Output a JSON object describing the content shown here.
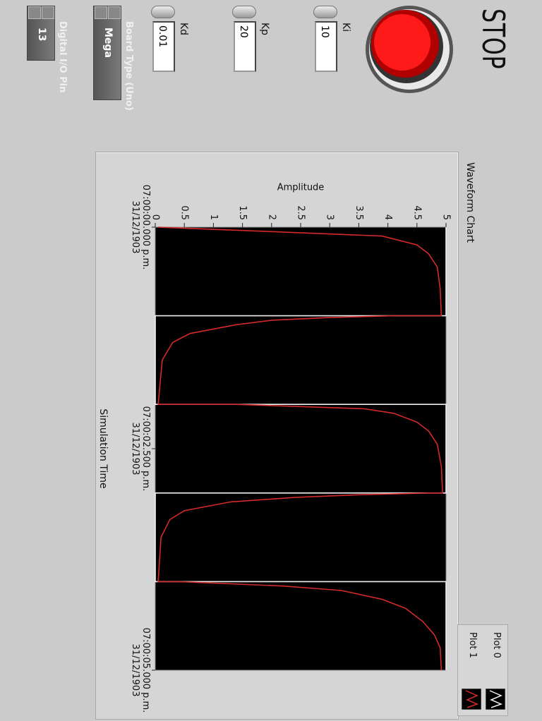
{
  "stop_button": {
    "label": "STOP"
  },
  "controls": [
    {
      "label": "Ki",
      "value": "10"
    },
    {
      "label": "Kp",
      "value": "20"
    },
    {
      "label": "Kd",
      "value": "0.01"
    }
  ],
  "board_type": {
    "label": "Board Type (Uno)",
    "value": "Mega"
  },
  "digital_pin": {
    "label": "Digital I/O Pin",
    "value": "13"
  },
  "chart_data": {
    "type": "line",
    "title": "Waveform Chart",
    "x_label": "Simulation Time",
    "y_label": "Amplitude",
    "xlim": [
      0,
      5
    ],
    "xticks": [
      {
        "value": 0,
        "label": "07:00:00.000 p.m.\n31/12/1903"
      },
      {
        "value": 2.5,
        "label": "07:00:02.500 p.m.\n31/12/1903"
      },
      {
        "value": 5,
        "label": "07:00:05.000 p.m.\n31/12/1903"
      }
    ],
    "ylim": [
      0,
      5
    ],
    "yticks": [
      0,
      0.5,
      1,
      1.5,
      2,
      2.5,
      3,
      3.5,
      4,
      4.5,
      5
    ],
    "plot_background": "#000000",
    "legend": "top-right",
    "series": [
      {
        "name": "Plot 0",
        "color": "#f0f0f0",
        "x": [
          0,
          1,
          1,
          2,
          2,
          3,
          3,
          4,
          4,
          5
        ],
        "values": [
          5,
          5,
          0,
          0,
          5,
          5,
          0,
          0,
          5,
          5
        ]
      },
      {
        "name": "Plot 1",
        "color": "#d42a2a",
        "x": [
          0,
          0.05,
          0.1,
          0.2,
          0.3,
          0.45,
          0.7,
          1.0,
          1.0,
          1.02,
          1.05,
          1.1,
          1.2,
          1.3,
          1.5,
          2.0,
          2.0,
          2.05,
          2.1,
          2.2,
          2.3,
          2.45,
          2.7,
          3.0,
          3.0,
          3.02,
          3.05,
          3.1,
          3.2,
          3.3,
          3.5,
          4.0,
          4.0,
          4.05,
          4.1,
          4.2,
          4.3,
          4.45,
          4.6,
          4.75,
          5.0
        ],
        "values": [
          0.05,
          2.0,
          3.9,
          4.5,
          4.7,
          4.85,
          4.9,
          4.92,
          4.1,
          3.0,
          2.0,
          1.4,
          0.6,
          0.3,
          0.12,
          0.05,
          1.4,
          3.6,
          4.1,
          4.5,
          4.7,
          4.85,
          4.92,
          4.94,
          4.7,
          3.5,
          2.4,
          1.3,
          0.5,
          0.25,
          0.1,
          0.05,
          0.4,
          2.2,
          3.2,
          3.9,
          4.3,
          4.6,
          4.8,
          4.9,
          4.92
        ]
      }
    ]
  }
}
